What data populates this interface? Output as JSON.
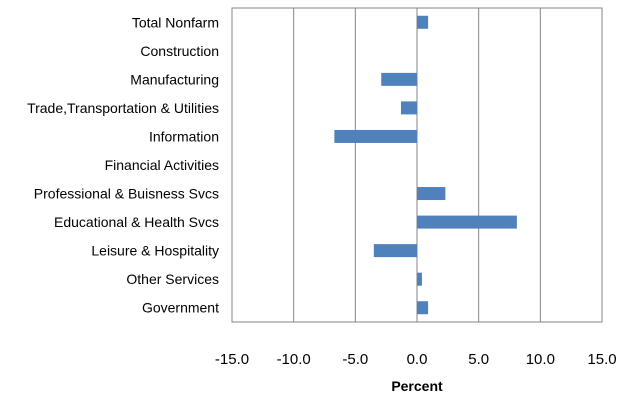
{
  "chart_data": {
    "type": "bar",
    "orientation": "horizontal",
    "title": "",
    "xlabel": "Percent",
    "ylabel": "",
    "xlim": [
      -15,
      15
    ],
    "xticks": [
      -15,
      -10,
      -5,
      0,
      5,
      10,
      15
    ],
    "tick_labels": [
      "-15.0",
      "-10.0",
      "-5.0",
      "0.0",
      "5.0",
      "10.0",
      "15.0"
    ],
    "grid": "vertical",
    "legend": "none",
    "bar_color": "#4F81BD",
    "categories": [
      "Total Nonfarm",
      "Construction",
      "Manufacturing",
      "Trade,Transportation & Utilities",
      "Information",
      "Financial Activities",
      "Professional & Buisness Svcs",
      "Educational & Health Svcs",
      "Leisure & Hospitality",
      "Other Services",
      "Government"
    ],
    "values": [
      0.9,
      0,
      -2.9,
      -1.3,
      -6.7,
      0,
      2.3,
      8.1,
      -3.5,
      0.4,
      0.9
    ]
  }
}
